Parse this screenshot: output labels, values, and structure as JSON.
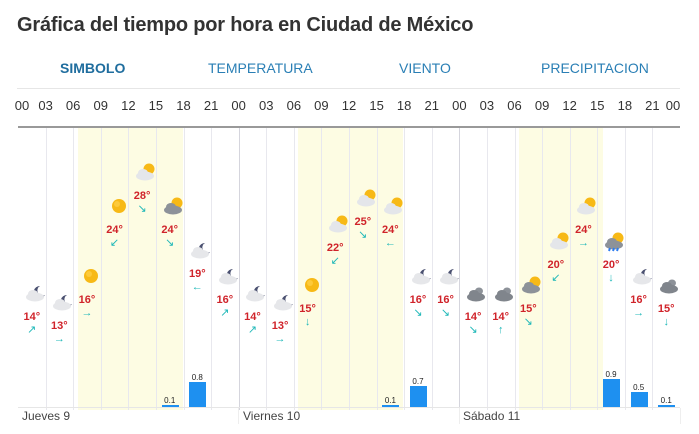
{
  "title": "Gráfica del tiempo por hora en Ciudad de México",
  "tabs": [
    {
      "label": "SIMBOLO",
      "active": true
    },
    {
      "label": "TEMPERATURA",
      "active": false
    },
    {
      "label": "VIENTO",
      "active": false
    },
    {
      "label": "PRECIPITACION",
      "active": false
    }
  ],
  "hour_labels": [
    "00",
    "03",
    "06",
    "09",
    "12",
    "15",
    "18",
    "21",
    "00",
    "03",
    "06",
    "09",
    "12",
    "15",
    "18",
    "21",
    "00",
    "03",
    "06",
    "09",
    "12",
    "15",
    "18",
    "21",
    "00"
  ],
  "days": [
    {
      "label": "Jueves 9"
    },
    {
      "label": "Viernes 10"
    },
    {
      "label": "Sábado 11"
    }
  ],
  "colors": {
    "temperature": "#d0232a",
    "wind": "#1fb8b8",
    "precipitation_bar": "#1e90f0",
    "daylight_shade": "#fdfce3",
    "tab_text": "#2a7fb5"
  },
  "forecast": [
    {
      "day": "Jueves 9",
      "hour": "00",
      "icon": "moon-cloud-icon",
      "temp": "14°",
      "wind": "↗",
      "precip": null
    },
    {
      "day": "Jueves 9",
      "hour": "03",
      "icon": "moon-cloud-icon",
      "temp": "13°",
      "wind": "→",
      "precip": null
    },
    {
      "day": "Jueves 9",
      "hour": "06",
      "icon": "sun-icon",
      "temp": "16°",
      "wind": "→",
      "precip": null
    },
    {
      "day": "Jueves 9",
      "hour": "09",
      "icon": "sun-icon",
      "temp": "24°",
      "wind": "↙",
      "precip": null
    },
    {
      "day": "Jueves 9",
      "hour": "12",
      "icon": "partly-cloudy-icon",
      "temp": "28°",
      "wind": "↘",
      "precip": null
    },
    {
      "day": "Jueves 9",
      "hour": "15",
      "icon": "cloudy-sun-icon",
      "temp": "24°",
      "wind": "↘",
      "precip": "0.1"
    },
    {
      "day": "Jueves 9",
      "hour": "18",
      "icon": "moon-cloud-icon",
      "temp": "19°",
      "wind": "←",
      "precip": "0.8"
    },
    {
      "day": "Jueves 9",
      "hour": "21",
      "icon": "moon-cloud-icon",
      "temp": "16°",
      "wind": "↗",
      "precip": null
    },
    {
      "day": "Viernes 10",
      "hour": "00",
      "icon": "moon-cloud-icon",
      "temp": "14°",
      "wind": "↗",
      "precip": null
    },
    {
      "day": "Viernes 10",
      "hour": "03",
      "icon": "moon-cloud-icon",
      "temp": "13°",
      "wind": "→",
      "precip": null
    },
    {
      "day": "Viernes 10",
      "hour": "06",
      "icon": "sun-icon",
      "temp": "15°",
      "wind": "↓",
      "precip": null
    },
    {
      "day": "Viernes 10",
      "hour": "09",
      "icon": "partly-cloudy-icon",
      "temp": "22°",
      "wind": "↙",
      "precip": null
    },
    {
      "day": "Viernes 10",
      "hour": "12",
      "icon": "partly-cloudy-icon",
      "temp": "25°",
      "wind": "↘",
      "precip": null
    },
    {
      "day": "Viernes 10",
      "hour": "15",
      "icon": "partly-cloudy-icon",
      "temp": "24°",
      "wind": "←",
      "precip": "0.1"
    },
    {
      "day": "Viernes 10",
      "hour": "18",
      "icon": "moon-cloud-icon",
      "temp": "16°",
      "wind": "↘",
      "precip": "0.7"
    },
    {
      "day": "Viernes 10",
      "hour": "21",
      "icon": "moon-cloud-icon",
      "temp": "16°",
      "wind": "↘",
      "precip": null
    },
    {
      "day": "Sábado 11",
      "hour": "00",
      "icon": "cloudy-icon",
      "temp": "14°",
      "wind": "↘",
      "precip": null
    },
    {
      "day": "Sábado 11",
      "hour": "03",
      "icon": "cloudy-icon",
      "temp": "14°",
      "wind": "↑",
      "precip": null
    },
    {
      "day": "Sábado 11",
      "hour": "06",
      "icon": "cloudy-sun-icon",
      "temp": "15°",
      "wind": "↘",
      "precip": null
    },
    {
      "day": "Sábado 11",
      "hour": "09",
      "icon": "partly-cloudy-icon",
      "temp": "20°",
      "wind": "↙",
      "precip": null
    },
    {
      "day": "Sábado 11",
      "hour": "12",
      "icon": "partly-cloudy-icon",
      "temp": "24°",
      "wind": "→",
      "precip": null
    },
    {
      "day": "Sábado 11",
      "hour": "15",
      "icon": "rain-sun-icon",
      "temp": "20°",
      "wind": "↓",
      "precip": "0.9"
    },
    {
      "day": "Sábado 11",
      "hour": "18",
      "icon": "moon-cloud-icon",
      "temp": "16°",
      "wind": "→",
      "precip": "0.5"
    },
    {
      "day": "Sábado 11",
      "hour": "21",
      "icon": "cloudy-icon",
      "temp": "15°",
      "wind": "↓",
      "precip": "0.1"
    }
  ]
}
